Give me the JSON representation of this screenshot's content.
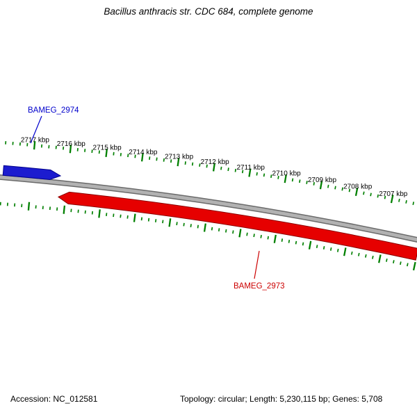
{
  "title": "Bacillus anthracis str. CDC 684, complete genome",
  "footer": {
    "accession": "Accession: NC_012581",
    "topology": "Topology: circular; Length: 5,230,115 bp; Genes: 5,708"
  },
  "genome": {
    "accession": "NC_012581",
    "topology": "circular",
    "length_bp": "5,230,115",
    "genes": "5,708"
  },
  "chart_data": {
    "type": "genome-arc-map",
    "description": "Zoomed segment of a circular genome map; backbone arc with kbp ruler, green tick rings and two gene feature arrows",
    "ruler": {
      "unit": "kbp",
      "direction": "decreasing-left-to-right",
      "major_interval_kbp": 1,
      "minor_ticks_per_major": 5,
      "major_tick_labels": [
        "2717 kbp",
        "2716 kbp",
        "2715 kbp",
        "2714 kbp",
        "2713 kbp",
        "2712 kbp",
        "2711 kbp",
        "2710 kbp",
        "2709 kbp",
        "2708 kbp",
        "2707 kbp"
      ],
      "tick_color": "#008000",
      "label_color": "#000000"
    },
    "backbone": {
      "color": "#b2b2b2",
      "edge_color": "#6a6a6a"
    },
    "features": [
      {
        "label": "BAMEG_2974",
        "strand": "forward",
        "arrow_direction": "right",
        "span_kbp": [
          2717.8,
          2716.2
        ],
        "color": "#1c1ccf",
        "edge_color": "#00008b",
        "label_color": "#0000cc"
      },
      {
        "label": "BAMEG_2973",
        "strand": "reverse",
        "arrow_direction": "left",
        "span_kbp": [
          2716.2,
          2706.0
        ],
        "color": "#e60000",
        "edge_color": "#8b0000",
        "label_color": "#cc0000"
      }
    ]
  }
}
